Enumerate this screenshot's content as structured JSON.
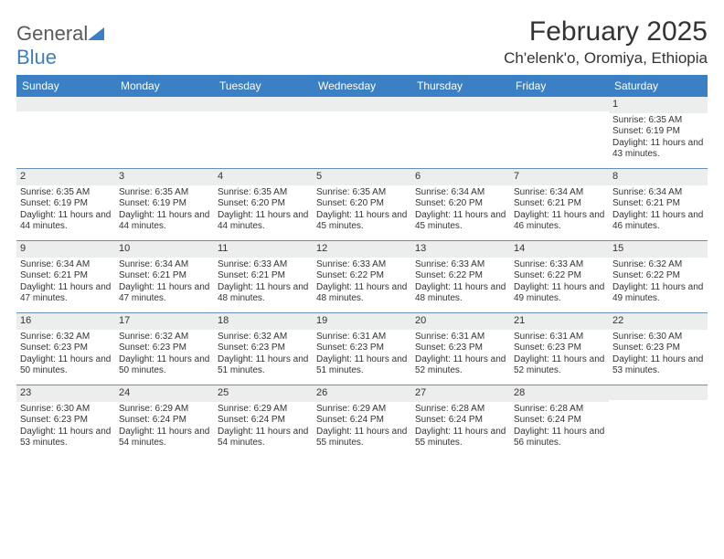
{
  "brand": {
    "name_gray": "General",
    "name_blue": "Blue"
  },
  "header": {
    "title": "February 2025",
    "location": "Ch'elenk'o, Oromiya, Ethiopia"
  },
  "colors": {
    "header_bar": "#3b7fc4",
    "header_text": "#ffffff",
    "daynum_band": "#eceded",
    "week_divider": "#6a8fb5",
    "body_text": "#333333",
    "background": "#ffffff"
  },
  "typography": {
    "title_fontsize": 30,
    "location_fontsize": 17,
    "dow_fontsize": 12,
    "daynum_fontsize": 11,
    "cell_fontsize": 10
  },
  "days_of_week": [
    "Sunday",
    "Monday",
    "Tuesday",
    "Wednesday",
    "Thursday",
    "Friday",
    "Saturday"
  ],
  "weeks": [
    [
      {
        "n": "",
        "sunrise": "",
        "sunset": "",
        "daylight": ""
      },
      {
        "n": "",
        "sunrise": "",
        "sunset": "",
        "daylight": ""
      },
      {
        "n": "",
        "sunrise": "",
        "sunset": "",
        "daylight": ""
      },
      {
        "n": "",
        "sunrise": "",
        "sunset": "",
        "daylight": ""
      },
      {
        "n": "",
        "sunrise": "",
        "sunset": "",
        "daylight": ""
      },
      {
        "n": "",
        "sunrise": "",
        "sunset": "",
        "daylight": ""
      },
      {
        "n": "1",
        "sunrise": "Sunrise: 6:35 AM",
        "sunset": "Sunset: 6:19 PM",
        "daylight": "Daylight: 11 hours and 43 minutes."
      }
    ],
    [
      {
        "n": "2",
        "sunrise": "Sunrise: 6:35 AM",
        "sunset": "Sunset: 6:19 PM",
        "daylight": "Daylight: 11 hours and 44 minutes."
      },
      {
        "n": "3",
        "sunrise": "Sunrise: 6:35 AM",
        "sunset": "Sunset: 6:19 PM",
        "daylight": "Daylight: 11 hours and 44 minutes."
      },
      {
        "n": "4",
        "sunrise": "Sunrise: 6:35 AM",
        "sunset": "Sunset: 6:20 PM",
        "daylight": "Daylight: 11 hours and 44 minutes."
      },
      {
        "n": "5",
        "sunrise": "Sunrise: 6:35 AM",
        "sunset": "Sunset: 6:20 PM",
        "daylight": "Daylight: 11 hours and 45 minutes."
      },
      {
        "n": "6",
        "sunrise": "Sunrise: 6:34 AM",
        "sunset": "Sunset: 6:20 PM",
        "daylight": "Daylight: 11 hours and 45 minutes."
      },
      {
        "n": "7",
        "sunrise": "Sunrise: 6:34 AM",
        "sunset": "Sunset: 6:21 PM",
        "daylight": "Daylight: 11 hours and 46 minutes."
      },
      {
        "n": "8",
        "sunrise": "Sunrise: 6:34 AM",
        "sunset": "Sunset: 6:21 PM",
        "daylight": "Daylight: 11 hours and 46 minutes."
      }
    ],
    [
      {
        "n": "9",
        "sunrise": "Sunrise: 6:34 AM",
        "sunset": "Sunset: 6:21 PM",
        "daylight": "Daylight: 11 hours and 47 minutes."
      },
      {
        "n": "10",
        "sunrise": "Sunrise: 6:34 AM",
        "sunset": "Sunset: 6:21 PM",
        "daylight": "Daylight: 11 hours and 47 minutes."
      },
      {
        "n": "11",
        "sunrise": "Sunrise: 6:33 AM",
        "sunset": "Sunset: 6:21 PM",
        "daylight": "Daylight: 11 hours and 48 minutes."
      },
      {
        "n": "12",
        "sunrise": "Sunrise: 6:33 AM",
        "sunset": "Sunset: 6:22 PM",
        "daylight": "Daylight: 11 hours and 48 minutes."
      },
      {
        "n": "13",
        "sunrise": "Sunrise: 6:33 AM",
        "sunset": "Sunset: 6:22 PM",
        "daylight": "Daylight: 11 hours and 48 minutes."
      },
      {
        "n": "14",
        "sunrise": "Sunrise: 6:33 AM",
        "sunset": "Sunset: 6:22 PM",
        "daylight": "Daylight: 11 hours and 49 minutes."
      },
      {
        "n": "15",
        "sunrise": "Sunrise: 6:32 AM",
        "sunset": "Sunset: 6:22 PM",
        "daylight": "Daylight: 11 hours and 49 minutes."
      }
    ],
    [
      {
        "n": "16",
        "sunrise": "Sunrise: 6:32 AM",
        "sunset": "Sunset: 6:23 PM",
        "daylight": "Daylight: 11 hours and 50 minutes."
      },
      {
        "n": "17",
        "sunrise": "Sunrise: 6:32 AM",
        "sunset": "Sunset: 6:23 PM",
        "daylight": "Daylight: 11 hours and 50 minutes."
      },
      {
        "n": "18",
        "sunrise": "Sunrise: 6:32 AM",
        "sunset": "Sunset: 6:23 PM",
        "daylight": "Daylight: 11 hours and 51 minutes."
      },
      {
        "n": "19",
        "sunrise": "Sunrise: 6:31 AM",
        "sunset": "Sunset: 6:23 PM",
        "daylight": "Daylight: 11 hours and 51 minutes."
      },
      {
        "n": "20",
        "sunrise": "Sunrise: 6:31 AM",
        "sunset": "Sunset: 6:23 PM",
        "daylight": "Daylight: 11 hours and 52 minutes."
      },
      {
        "n": "21",
        "sunrise": "Sunrise: 6:31 AM",
        "sunset": "Sunset: 6:23 PM",
        "daylight": "Daylight: 11 hours and 52 minutes."
      },
      {
        "n": "22",
        "sunrise": "Sunrise: 6:30 AM",
        "sunset": "Sunset: 6:23 PM",
        "daylight": "Daylight: 11 hours and 53 minutes."
      }
    ],
    [
      {
        "n": "23",
        "sunrise": "Sunrise: 6:30 AM",
        "sunset": "Sunset: 6:23 PM",
        "daylight": "Daylight: 11 hours and 53 minutes."
      },
      {
        "n": "24",
        "sunrise": "Sunrise: 6:29 AM",
        "sunset": "Sunset: 6:24 PM",
        "daylight": "Daylight: 11 hours and 54 minutes."
      },
      {
        "n": "25",
        "sunrise": "Sunrise: 6:29 AM",
        "sunset": "Sunset: 6:24 PM",
        "daylight": "Daylight: 11 hours and 54 minutes."
      },
      {
        "n": "26",
        "sunrise": "Sunrise: 6:29 AM",
        "sunset": "Sunset: 6:24 PM",
        "daylight": "Daylight: 11 hours and 55 minutes."
      },
      {
        "n": "27",
        "sunrise": "Sunrise: 6:28 AM",
        "sunset": "Sunset: 6:24 PM",
        "daylight": "Daylight: 11 hours and 55 minutes."
      },
      {
        "n": "28",
        "sunrise": "Sunrise: 6:28 AM",
        "sunset": "Sunset: 6:24 PM",
        "daylight": "Daylight: 11 hours and 56 minutes."
      },
      {
        "n": "",
        "sunrise": "",
        "sunset": "",
        "daylight": ""
      }
    ]
  ]
}
